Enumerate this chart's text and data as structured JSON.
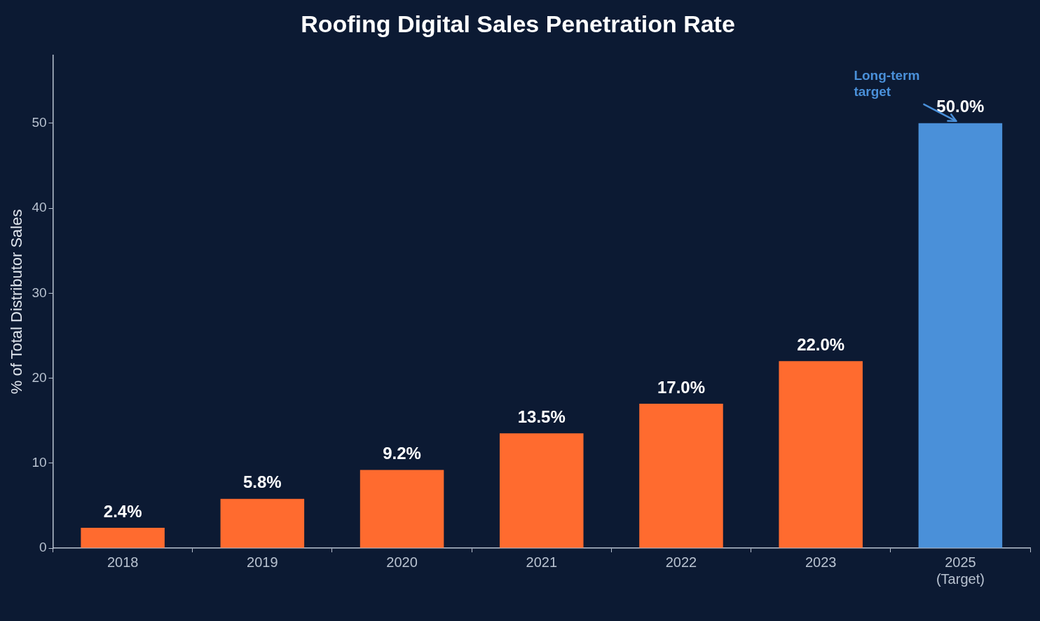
{
  "chart_data": {
    "type": "bar",
    "title": "Roofing Digital Sales Penetration Rate",
    "ylabel": "% of Total Distributor Sales",
    "categories": [
      "2018",
      "2019",
      "2020",
      "2021",
      "2022",
      "2023",
      "2025\n(Target)"
    ],
    "values": [
      2.4,
      5.8,
      9.2,
      13.5,
      17.0,
      22.0,
      50.0
    ],
    "colors": [
      "#ff6b2f",
      "#ff6b2f",
      "#ff6b2f",
      "#ff6b2f",
      "#ff6b2f",
      "#ff6b2f",
      "#4a90d9"
    ],
    "value_labels": [
      "2.4%",
      "5.8%",
      "9.2%",
      "13.5%",
      "17.0%",
      "22.0%",
      "50.0%"
    ],
    "ylim": [
      0,
      58
    ],
    "yticks": [
      0,
      10,
      20,
      30,
      40,
      50
    ],
    "grid": false,
    "legend": false,
    "annotations": [
      {
        "text": "Long-term target",
        "x": "2025\n(Target)",
        "y": 50
      }
    ]
  }
}
